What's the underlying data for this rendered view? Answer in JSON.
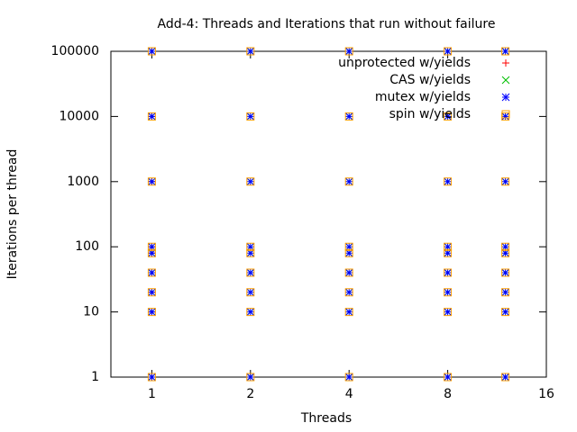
{
  "chart_data": {
    "type": "scatter",
    "title": "Add-4: Threads and Iterations that run without failure",
    "x_label": "Threads",
    "y_label": "Iterations per thread",
    "xscale": "log",
    "yscale": "log",
    "xlim": [
      0.75,
      16
    ],
    "xticks": [
      1,
      2,
      4,
      8,
      16
    ],
    "ylim": [
      1,
      100000
    ],
    "yticks": [
      1,
      10,
      100,
      1000,
      10000,
      100000
    ],
    "legend": "top-right",
    "series": [
      {
        "name": "unprotected w/yields",
        "color": "#ff0000",
        "marker": "plus",
        "x": [
          1,
          1,
          1,
          1,
          1,
          1,
          1,
          1,
          1
        ],
        "values": [
          1,
          10,
          20,
          40,
          80,
          100,
          1000,
          10000,
          100000
        ]
      },
      {
        "name": "CAS w/yields",
        "color": "#00c000",
        "marker": "cross",
        "x": [
          1,
          1,
          1,
          1,
          1,
          1,
          1,
          1,
          1,
          2,
          2,
          2,
          2,
          2,
          2,
          2,
          2,
          2,
          4,
          4,
          4,
          4,
          4,
          4,
          4,
          4,
          4,
          8,
          8,
          8,
          8,
          8,
          8,
          8,
          8,
          8,
          12,
          12,
          12,
          12,
          12,
          12,
          12,
          12,
          12
        ],
        "values": [
          1,
          10,
          20,
          40,
          80,
          100,
          1000,
          10000,
          100000,
          1,
          10,
          20,
          40,
          80,
          100,
          1000,
          10000,
          100000,
          1,
          10,
          20,
          40,
          80,
          100,
          1000,
          10000,
          100000,
          1,
          10,
          20,
          40,
          80,
          100,
          1000,
          10000,
          100000,
          1,
          10,
          20,
          40,
          80,
          100,
          1000,
          10000,
          100000
        ]
      },
      {
        "name": "mutex w/yields",
        "color": "#0000ff",
        "marker": "star",
        "x": [
          1,
          1,
          1,
          1,
          1,
          1,
          1,
          1,
          1,
          2,
          2,
          2,
          2,
          2,
          2,
          2,
          2,
          2,
          4,
          4,
          4,
          4,
          4,
          4,
          4,
          4,
          4,
          8,
          8,
          8,
          8,
          8,
          8,
          8,
          8,
          8,
          12,
          12,
          12,
          12,
          12,
          12,
          12,
          12,
          12
        ],
        "values": [
          1,
          10,
          20,
          40,
          80,
          100,
          1000,
          10000,
          100000,
          1,
          10,
          20,
          40,
          80,
          100,
          1000,
          10000,
          100000,
          1,
          10,
          20,
          40,
          80,
          100,
          1000,
          10000,
          100000,
          1,
          10,
          20,
          40,
          80,
          100,
          1000,
          10000,
          100000,
          1,
          10,
          20,
          40,
          80,
          100,
          1000,
          10000,
          100000
        ]
      },
      {
        "name": "spin w/yields",
        "color": "#ffa000",
        "marker": "square",
        "x": [
          1,
          1,
          1,
          1,
          1,
          1,
          1,
          1,
          1,
          2,
          2,
          2,
          2,
          2,
          2,
          2,
          2,
          2,
          4,
          4,
          4,
          4,
          4,
          4,
          4,
          4,
          4,
          8,
          8,
          8,
          8,
          8,
          8,
          8,
          8,
          8,
          12,
          12,
          12,
          12,
          12,
          12,
          12,
          12,
          12
        ],
        "values": [
          1,
          10,
          20,
          40,
          80,
          100,
          1000,
          10000,
          100000,
          1,
          10,
          20,
          40,
          80,
          100,
          1000,
          10000,
          100000,
          1,
          10,
          20,
          40,
          80,
          100,
          1000,
          10000,
          100000,
          1,
          10,
          20,
          40,
          80,
          100,
          1000,
          10000,
          100000,
          1,
          10,
          20,
          40,
          80,
          100,
          1000,
          10000,
          100000
        ]
      }
    ]
  }
}
